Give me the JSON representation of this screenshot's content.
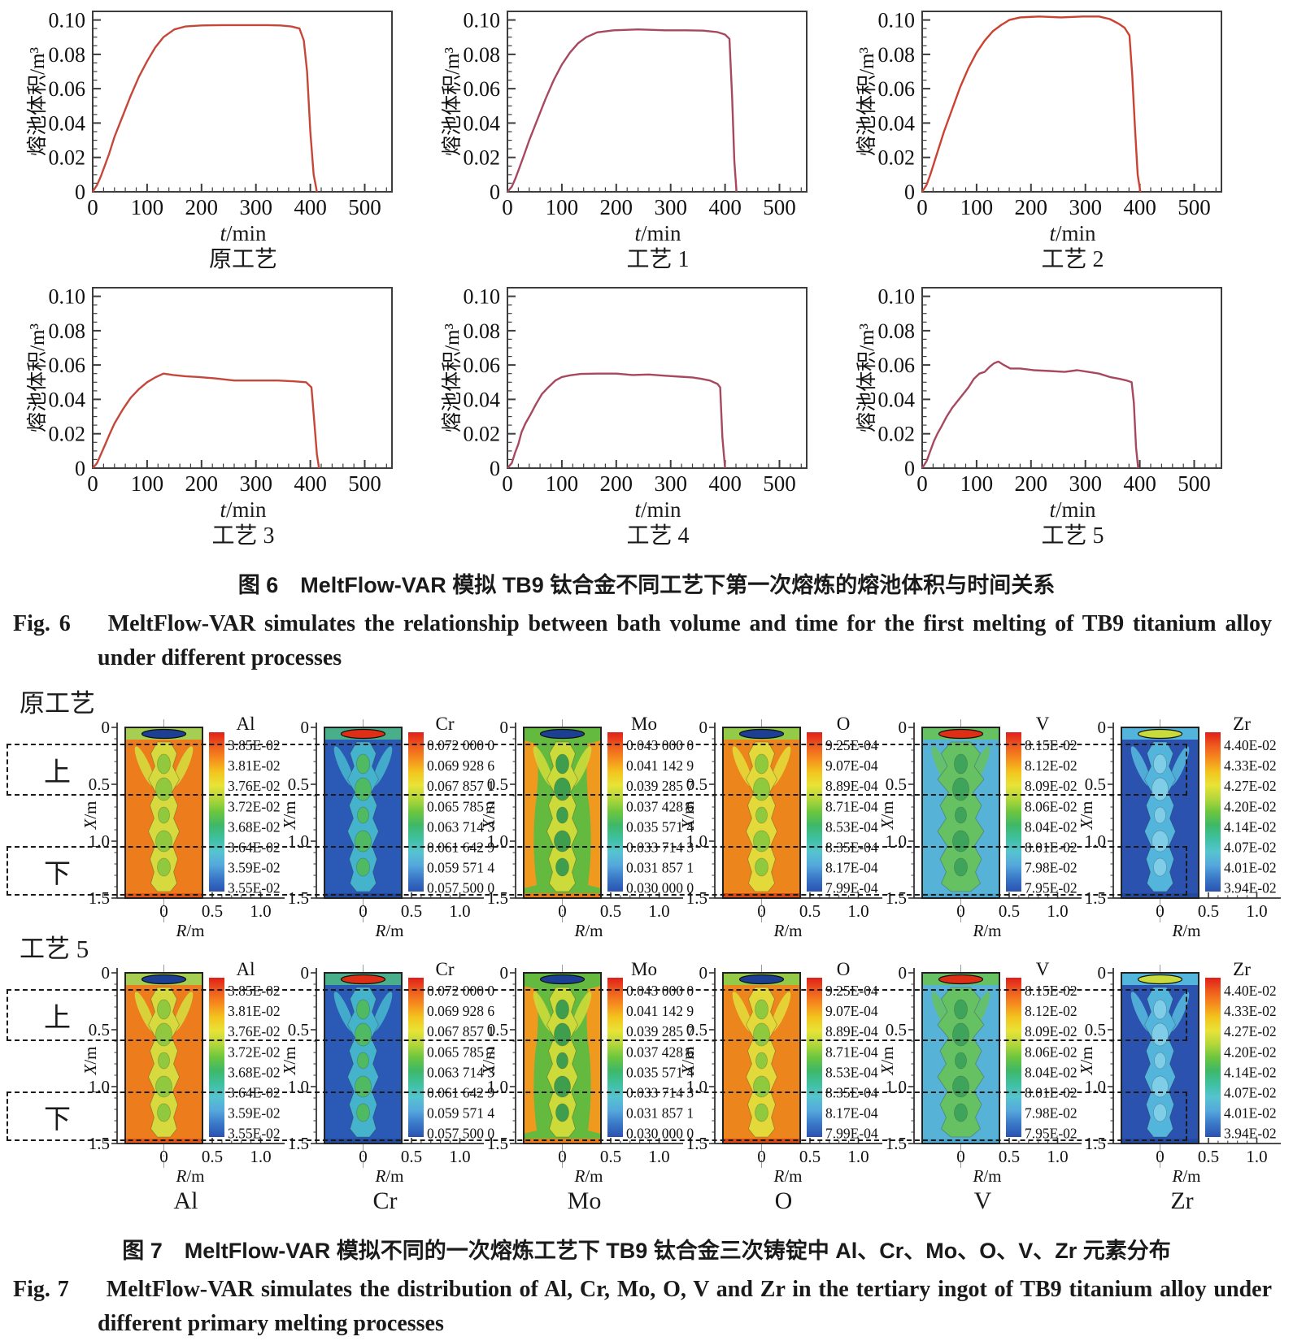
{
  "page": {
    "background": "#ffffff"
  },
  "figure6": {
    "ylabel": "熔池体积/m³",
    "xlabel_var": "t",
    "xlabel_unit": "/min",
    "x_ticks": [
      0,
      100,
      200,
      300,
      400,
      500
    ],
    "y_ticks": [
      0,
      0.02,
      0.04,
      0.06,
      0.08,
      0.1
    ],
    "xlim": [
      0,
      550
    ],
    "ylim": [
      0,
      0.105
    ],
    "caption_zh": "图 6　MeltFlow-VAR 模拟 TB9 钛合金不同工艺下第一次熔炼的熔池体积与时间关系",
    "caption_en_prefix": "Fig. 6",
    "caption_en": "MeltFlow-VAR simulates the relationship between bath volume and time for the first melting of TB9 titanium alloy under different processes"
  },
  "chart_data": [
    {
      "type": "line",
      "title": "原工艺",
      "xlabel": "t/min",
      "ylabel": "熔池体积/m³",
      "xlim": [
        0,
        550
      ],
      "ylim": [
        0,
        0.105
      ],
      "color": "#c5473a",
      "x": [
        0,
        8,
        15,
        22,
        30,
        40,
        55,
        70,
        85,
        100,
        115,
        130,
        150,
        170,
        200,
        240,
        280,
        320,
        345,
        365,
        380,
        388,
        394,
        400,
        406,
        412
      ],
      "y": [
        0,
        0.004,
        0.009,
        0.015,
        0.022,
        0.032,
        0.044,
        0.056,
        0.067,
        0.076,
        0.084,
        0.09,
        0.0945,
        0.0962,
        0.0968,
        0.097,
        0.097,
        0.097,
        0.0968,
        0.0962,
        0.095,
        0.088,
        0.07,
        0.035,
        0.01,
        0
      ]
    },
    {
      "type": "line",
      "title": "工艺 1",
      "xlabel": "t/min",
      "ylabel": "熔池体积/m³",
      "xlim": [
        0,
        550
      ],
      "ylim": [
        0,
        0.105
      ],
      "color": "#a8485f",
      "x": [
        0,
        8,
        15,
        22,
        30,
        40,
        55,
        70,
        85,
        100,
        115,
        130,
        145,
        165,
        195,
        240,
        290,
        330,
        360,
        385,
        400,
        408,
        413,
        417,
        421
      ],
      "y": [
        0,
        0.003,
        0.008,
        0.014,
        0.021,
        0.03,
        0.042,
        0.054,
        0.065,
        0.074,
        0.081,
        0.0865,
        0.09,
        0.0928,
        0.094,
        0.0945,
        0.094,
        0.094,
        0.0938,
        0.093,
        0.0915,
        0.089,
        0.055,
        0.018,
        0
      ]
    },
    {
      "type": "line",
      "title": "工艺 2",
      "xlabel": "t/min",
      "ylabel": "熔池体积/m³",
      "xlim": [
        0,
        550
      ],
      "ylim": [
        0,
        0.105
      ],
      "color": "#cb4232",
      "x": [
        0,
        8,
        15,
        22,
        30,
        40,
        55,
        70,
        85,
        100,
        115,
        130,
        145,
        160,
        180,
        215,
        255,
        295,
        325,
        345,
        360,
        372,
        381,
        386,
        391,
        396,
        401
      ],
      "y": [
        0,
        0.004,
        0.01,
        0.017,
        0.025,
        0.035,
        0.048,
        0.061,
        0.072,
        0.081,
        0.088,
        0.0935,
        0.097,
        0.1,
        0.1015,
        0.102,
        0.1015,
        0.102,
        0.102,
        0.1005,
        0.098,
        0.0955,
        0.091,
        0.068,
        0.038,
        0.01,
        0
      ]
    },
    {
      "type": "line",
      "title": "工艺 3",
      "xlabel": "t/min",
      "ylabel": "熔池体积/m³",
      "xlim": [
        0,
        550
      ],
      "ylim": [
        0,
        0.105
      ],
      "color": "#c5473a",
      "x": [
        0,
        8,
        15,
        22,
        30,
        40,
        55,
        70,
        85,
        100,
        115,
        130,
        148,
        170,
        195,
        225,
        260,
        300,
        340,
        370,
        392,
        402,
        407,
        412,
        416
      ],
      "y": [
        0,
        0.003,
        0.008,
        0.013,
        0.019,
        0.026,
        0.034,
        0.041,
        0.046,
        0.05,
        0.0528,
        0.055,
        0.0542,
        0.0535,
        0.053,
        0.0522,
        0.051,
        0.051,
        0.051,
        0.0505,
        0.05,
        0.047,
        0.028,
        0.008,
        0
      ]
    },
    {
      "type": "line",
      "title": "工艺 4",
      "xlabel": "t/min",
      "ylabel": "熔池体积/m³",
      "xlim": [
        0,
        550
      ],
      "ylim": [
        0,
        0.105
      ],
      "color": "#a8485f",
      "x": [
        0,
        8,
        14,
        20,
        26,
        33,
        42,
        52,
        63,
        75,
        88,
        100,
        115,
        135,
        165,
        200,
        230,
        260,
        290,
        318,
        340,
        356,
        372,
        386,
        391,
        395,
        400
      ],
      "y": [
        0,
        0.003,
        0.009,
        0.014,
        0.021,
        0.026,
        0.031,
        0.037,
        0.043,
        0.047,
        0.051,
        0.053,
        0.054,
        0.0548,
        0.055,
        0.055,
        0.0542,
        0.0545,
        0.0538,
        0.0532,
        0.0528,
        0.052,
        0.051,
        0.049,
        0.047,
        0.018,
        0
      ]
    },
    {
      "type": "line",
      "title": "工艺 5",
      "xlabel": "t/min",
      "ylabel": "熔池体积/m³",
      "xlim": [
        0,
        550
      ],
      "ylim": [
        0,
        0.105
      ],
      "color": "#a8485f",
      "x": [
        0,
        8,
        15,
        22,
        28,
        35,
        45,
        55,
        65,
        75,
        85,
        95,
        105,
        115,
        124,
        132,
        140,
        150,
        162,
        180,
        205,
        235,
        262,
        285,
        305,
        325,
        345,
        362,
        376,
        385,
        389,
        393,
        397
      ],
      "y": [
        0,
        0.004,
        0.01,
        0.016,
        0.02,
        0.024,
        0.03,
        0.035,
        0.039,
        0.043,
        0.047,
        0.052,
        0.055,
        0.056,
        0.059,
        0.061,
        0.062,
        0.06,
        0.058,
        0.058,
        0.057,
        0.0565,
        0.056,
        0.057,
        0.056,
        0.055,
        0.053,
        0.052,
        0.051,
        0.05,
        0.038,
        0.012,
        0
      ]
    }
  ],
  "figure7": {
    "row_labels": [
      "原工艺",
      "工艺 5"
    ],
    "region_upper": "上",
    "region_lower": "下",
    "ylabel_var": "X",
    "ylabel_unit": "/m",
    "xlabel_var": "R",
    "xlabel_unit": "/m",
    "y_ticks": [
      "0",
      "0.5",
      "1.0",
      "1.5"
    ],
    "x_ticks": [
      "0",
      "0.5",
      "1.0"
    ],
    "colorbar_gradient": [
      "#e01f1a",
      "#ee5a1d",
      "#f68d1e",
      "#f3c51d",
      "#e8e337",
      "#b4d73a",
      "#6cc63e",
      "#3eb868",
      "#3fc0a0",
      "#55c4cf",
      "#55a8dc",
      "#3a78c8",
      "#2a52b0"
    ],
    "elements": [
      {
        "symbol": "Al",
        "values": [
          "3.85E-02",
          "3.81E-02",
          "3.76E-02",
          "3.72E-02",
          "3.68E-02",
          "3.64E-02",
          "3.59E-02",
          "3.55E-02"
        ],
        "palette": {
          "bg": "#ed7d1c",
          "mid": "#d6da3e",
          "blobs": "#90c83e",
          "top_band": "#a5ce52",
          "top_spot": "#1d3f93",
          "bottom": "#e2561b"
        }
      },
      {
        "symbol": "Cr",
        "values": [
          "0.072 000 0",
          "0.069 928 6",
          "0.067 857 1",
          "0.065 785 7",
          "0.063 714 3",
          "0.061 642 9",
          "0.059 571 4",
          "0.057 500 0"
        ],
        "palette": {
          "bg": "#2a5ab6",
          "mid": "#46b3cd",
          "blobs": "#4fba62",
          "top_band": "#49ae8a",
          "top_spot": "#df2e16",
          "bottom": "#224a9e"
        }
      },
      {
        "symbol": "Mo",
        "values": [
          "0.043 000 0",
          "0.041 142 9",
          "0.039 285 7",
          "0.037 428 6",
          "0.035 571 4",
          "0.033 714 3",
          "0.031 857 1",
          "0.030 000 0"
        ],
        "palette": {
          "bg": "#64ba3e",
          "side": "#ef9a1e",
          "mid": "#ccda3a",
          "blobs": "#3f9e4e",
          "top_band": "#64ba3e",
          "top_spot": "#1d3f93",
          "bottom": "#ec7d1e"
        }
      },
      {
        "symbol": "O",
        "values": [
          "9.25E-04",
          "9.07E-04",
          "8.89E-04",
          "8.71E-04",
          "8.53E-04",
          "8.35E-04",
          "8.17E-04",
          "7.99E-04"
        ],
        "palette": {
          "bg": "#ec851c",
          "mid": "#e4d93a",
          "blobs": "#8fc93e",
          "top_band": "#93ca48",
          "top_spot": "#1d3f93",
          "bottom": "#da4a16"
        }
      },
      {
        "symbol": "V",
        "values": [
          "8.15E-02",
          "8.12E-02",
          "8.09E-02",
          "8.06E-02",
          "8.04E-02",
          "8.01E-02",
          "7.98E-02",
          "7.95E-02"
        ],
        "palette": {
          "bg": "#57b2d8",
          "mid": "#66c163",
          "blobs": "#3fa45b",
          "top_band": "#66c163",
          "top_spot": "#df2e16",
          "bottom": "#4fa8d2",
          "wide": true
        }
      },
      {
        "symbol": "Zr",
        "values": [
          "4.40E-02",
          "4.33E-02",
          "4.27E-02",
          "4.20E-02",
          "4.14E-02",
          "4.07E-02",
          "4.01E-02",
          "3.94E-02"
        ],
        "palette": {
          "bg": "#2a52ae",
          "mid": "#54b5dc",
          "blobs": "#7fcde6",
          "top_band": "#54b5dc",
          "top_spot": "#c9da3c",
          "bottom": "#24489c"
        }
      }
    ],
    "bottom_labels": [
      "Al",
      "Cr",
      "Mo",
      "O",
      "V",
      "Zr"
    ],
    "caption_zh": "图 7　MeltFlow-VAR 模拟不同的一次熔炼工艺下 TB9 钛合金三次铸锭中 Al、Cr、Mo、O、V、Zr 元素分布",
    "caption_en_prefix": "Fig. 7",
    "caption_en": "MeltFlow-VAR simulates the distribution of Al, Cr, Mo, O, V and Zr in the tertiary ingot of TB9 titanium alloy under different primary melting processes"
  }
}
